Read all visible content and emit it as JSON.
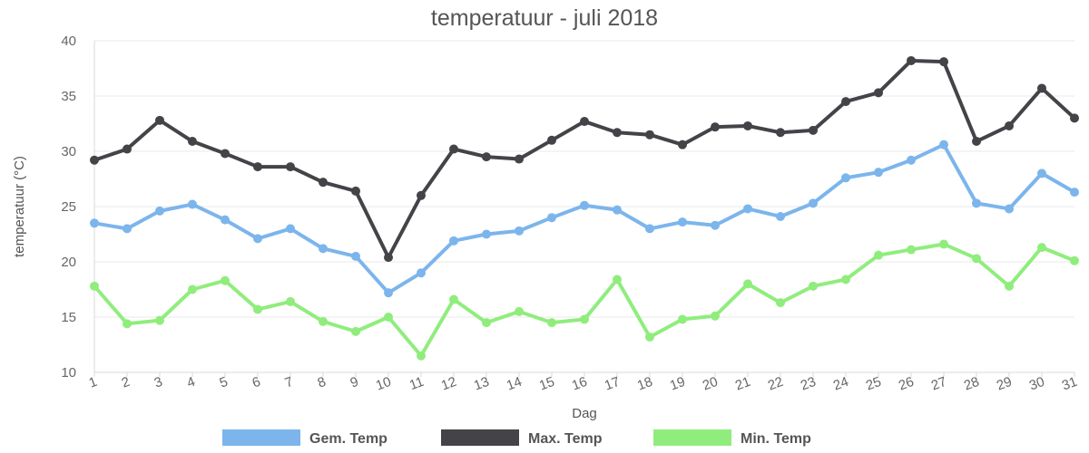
{
  "chart_data": {
    "type": "line",
    "title": "temperatuur - juli 2018",
    "xlabel": "Dag",
    "ylabel": "temperatuur (°C)",
    "ylim": [
      10,
      40
    ],
    "y_ticks": [
      10,
      15,
      20,
      25,
      30,
      35,
      40
    ],
    "grid": true,
    "legend_position": "bottom",
    "categories": [
      "1",
      "2",
      "3",
      "4",
      "5",
      "6",
      "7",
      "8",
      "9",
      "10",
      "11",
      "12",
      "13",
      "14",
      "15",
      "16",
      "17",
      "18",
      "19",
      "20",
      "21",
      "22",
      "23",
      "24",
      "25",
      "26",
      "27",
      "28",
      "29",
      "30",
      "31"
    ],
    "series": [
      {
        "name": "Gem. Temp",
        "color": "#7cb5ec",
        "values": [
          23.5,
          23.0,
          24.6,
          25.2,
          23.8,
          22.1,
          23.0,
          21.2,
          20.5,
          17.2,
          19.0,
          21.9,
          22.5,
          22.8,
          24.0,
          25.1,
          24.7,
          23.0,
          23.6,
          23.3,
          24.8,
          24.1,
          25.3,
          27.6,
          28.1,
          29.2,
          30.6,
          25.3,
          24.8,
          28.0,
          26.3
        ]
      },
      {
        "name": "Max. Temp",
        "color": "#434348",
        "values": [
          29.2,
          30.2,
          32.8,
          30.9,
          29.8,
          28.6,
          28.6,
          27.2,
          26.4,
          20.4,
          26.0,
          30.2,
          29.5,
          29.3,
          31.0,
          32.7,
          31.7,
          31.5,
          30.6,
          32.2,
          32.3,
          31.7,
          31.9,
          34.5,
          35.3,
          38.2,
          38.1,
          30.9,
          32.3,
          35.7,
          33.0
        ]
      },
      {
        "name": "Min. Temp",
        "color": "#90ed7d",
        "values": [
          17.8,
          14.4,
          14.7,
          17.5,
          18.3,
          15.7,
          16.4,
          14.6,
          13.7,
          15.0,
          11.5,
          16.6,
          14.5,
          15.5,
          14.5,
          14.8,
          18.4,
          13.2,
          14.8,
          15.1,
          18.0,
          16.3,
          17.8,
          18.4,
          20.6,
          21.1,
          21.6,
          20.3,
          17.8,
          21.3,
          20.1
        ]
      }
    ]
  }
}
